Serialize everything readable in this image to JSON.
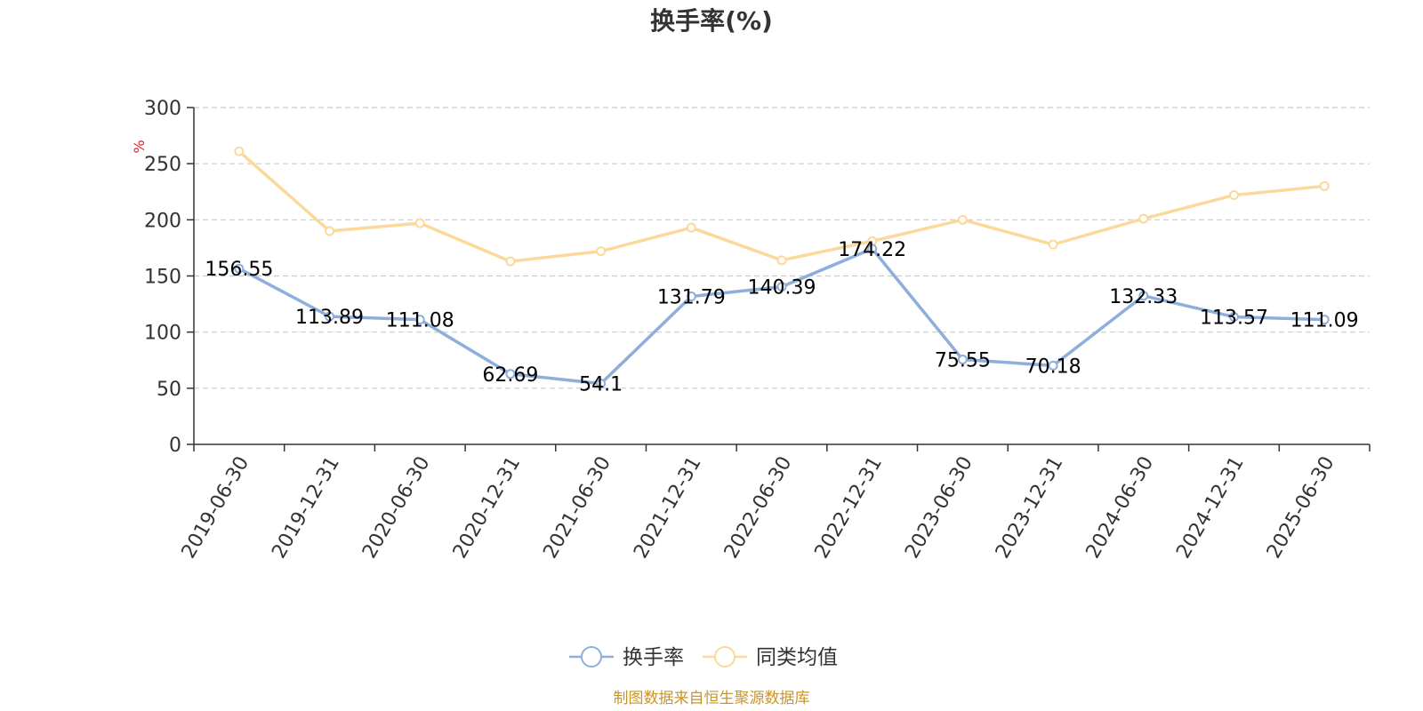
{
  "chart_data": {
    "type": "line",
    "title": "换手率(%)",
    "ylabel": "%",
    "xlabel": "",
    "ylim": [
      0,
      300
    ],
    "yticks": [
      0,
      50,
      100,
      150,
      200,
      250,
      300
    ],
    "grid": true,
    "legend_position": "bottom-center",
    "categories": [
      "2019-06-30",
      "2019-12-31",
      "2020-06-30",
      "2020-12-31",
      "2021-06-30",
      "2021-12-31",
      "2022-06-30",
      "2022-12-31",
      "2023-06-30",
      "2023-12-31",
      "2024-06-30",
      "2024-12-31",
      "2025-06-30"
    ],
    "series": [
      {
        "name": "换手率",
        "color": "#8eaedb",
        "show_labels": true,
        "values": [
          156.55,
          113.89,
          111.08,
          62.69,
          54.1,
          131.79,
          140.39,
          174.22,
          75.55,
          70.18,
          132.33,
          113.57,
          111.09
        ]
      },
      {
        "name": "同类均值",
        "color": "#fbd99a",
        "show_labels": false,
        "values": [
          261,
          190,
          197,
          163,
          172,
          193,
          164,
          181,
          200,
          178,
          201,
          222,
          230
        ]
      }
    ],
    "source_note": "制图数据来自恒生聚源数据库",
    "colors": {
      "title": "#333333",
      "axis": "#333333",
      "grid": "#cccccc",
      "ylabel": "#e02020",
      "note": "#c8952a",
      "data_label": "#000000"
    }
  }
}
